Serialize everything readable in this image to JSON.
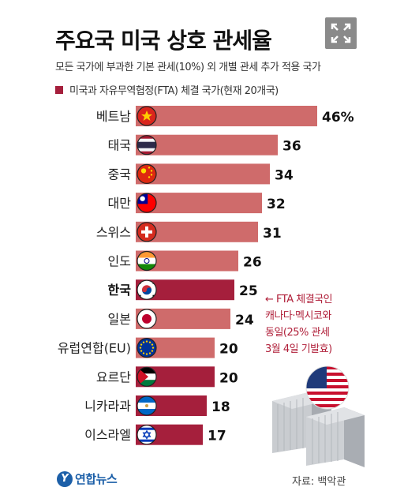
{
  "title": "주요국 미국 상호 관세율",
  "subtitle": "모든 국가에 부과한 기본 관세(10%) 외 개별 관세 추가 적용 국가",
  "legend_text": "미국과 자유무역협정(FTA) 체결 국가(현재 20개국)",
  "annotation": "← FTA 체결국인\n캐나다·멕시코와\n동일(25% 관세\n3월 4일 기발효)",
  "logo_text": "연합뉴스",
  "logo_mark": "Y",
  "source": "자료: 백악관",
  "colors": {
    "normal_bar": "#cf6b6b",
    "fta_bar": "#a51f3c"
  },
  "icons": {
    "expand": "expand-icon",
    "us_flag": "us-flag-icon",
    "containers": "shipping-container-icon"
  },
  "chart_data": {
    "type": "bar",
    "orientation": "horizontal",
    "categories": [
      "베트남",
      "태국",
      "중국",
      "대만",
      "스위스",
      "인도",
      "한국",
      "일본",
      "유럽연합(EU)",
      "요르단",
      "니카라과",
      "이스라엘"
    ],
    "values": [
      46,
      36,
      34,
      32,
      31,
      26,
      25,
      24,
      20,
      20,
      18,
      17
    ],
    "value_labels": [
      "46%",
      "36",
      "34",
      "32",
      "31",
      "26",
      "25",
      "24",
      "20",
      "20",
      "18",
      "17"
    ],
    "fta": [
      false,
      false,
      false,
      false,
      false,
      false,
      true,
      false,
      false,
      true,
      true,
      true
    ],
    "highlight": "한국",
    "flags": [
      "vietnam-flag-icon",
      "thailand-flag-icon",
      "china-flag-icon",
      "taiwan-flag-icon",
      "switzerland-flag-icon",
      "india-flag-icon",
      "korea-flag-icon",
      "japan-flag-icon",
      "eu-flag-icon",
      "jordan-flag-icon",
      "nicaragua-flag-icon",
      "israel-flag-icon"
    ],
    "xlim": [
      0,
      46
    ],
    "grid": false,
    "legend": "top-left"
  }
}
